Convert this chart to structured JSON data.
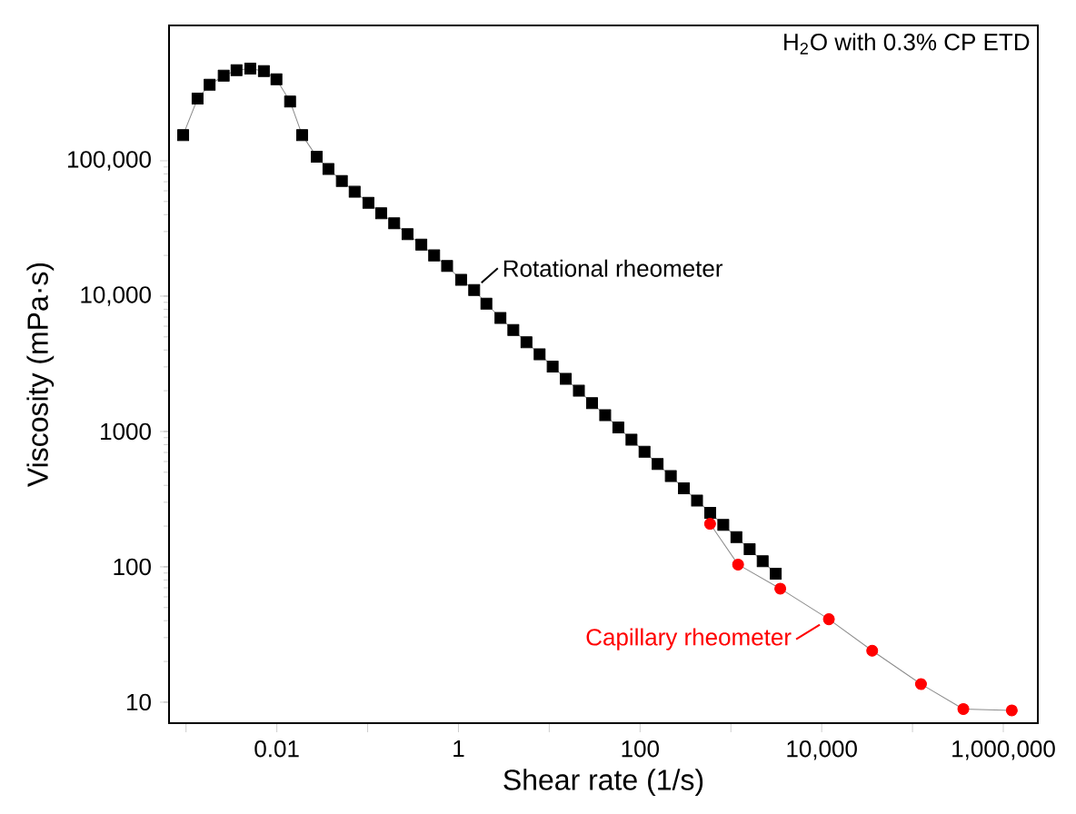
{
  "chart_data": {
    "type": "line",
    "xlabel": "Shear rate (1/s)",
    "ylabel": "Viscosity (mPa·s)",
    "log": "xy",
    "xlim": [
      0.00065,
      2400000
    ],
    "ylim": [
      7,
      1000000
    ],
    "xticks": [
      {
        "value": 0.001,
        "label": null
      },
      {
        "value": 0.01,
        "label": "0.01"
      },
      {
        "value": 0.1,
        "label": null
      },
      {
        "value": 1,
        "label": "1"
      },
      {
        "value": 10,
        "label": null
      },
      {
        "value": 100,
        "label": "100"
      },
      {
        "value": 1000,
        "label": null
      },
      {
        "value": 10000,
        "label": "10,000"
      },
      {
        "value": 100000,
        "label": null
      },
      {
        "value": 1000000,
        "label": "1,000,000"
      }
    ],
    "yticks": [
      10,
      100,
      1000,
      {
        "value": 10000,
        "label": "10,000"
      },
      {
        "value": 100000,
        "label": "100,000"
      }
    ],
    "grid": false,
    "line_style": "solid",
    "annotations": [
      "H$_{2}$O with 0.3% CP ETD"
    ],
    "series": [
      {
        "name": "Rotational rheometer",
        "color": "#000000",
        "marker": "square",
        "x": [
          0.00093,
          0.00134,
          0.00182,
          0.0026,
          0.0036,
          0.0051,
          0.0072,
          0.0099,
          0.014,
          0.019,
          0.0275,
          0.037,
          0.052,
          0.072,
          0.102,
          0.141,
          0.196,
          0.275,
          0.39,
          0.54,
          0.75,
          1.07,
          1.49,
          2.03,
          2.9,
          4.02,
          5.61,
          7.83,
          10.9,
          15.2,
          21.2,
          29.6,
          41.3,
          57.6,
          80.4,
          112,
          156,
          218,
          304,
          424,
          592,
          825,
          1150,
          1610,
          2240,
          3120
        ],
        "values": [
          155000,
          288000,
          365000,
          425000,
          467000,
          480000,
          460000,
          400000,
          274000,
          155000,
          107000,
          87000,
          71000,
          59000,
          49000,
          41000,
          34500,
          28700,
          24000,
          20000,
          16700,
          13200,
          11100,
          8800,
          6900,
          5620,
          4570,
          3720,
          3020,
          2450,
          2000,
          1620,
          1320,
          1070,
          871,
          708,
          575,
          468,
          380,
          309,
          251,
          204,
          166,
          135,
          110,
          89
        ]
      },
      {
        "name": "Capillary rheometer",
        "color": "#ff0000",
        "marker": "circle",
        "x": [
          590,
          1200,
          3500,
          12000,
          36000,
          124000,
          363000,
          1240000
        ],
        "values": [
          208,
          104,
          69,
          41,
          24,
          13.6,
          8.9,
          8.7
        ]
      }
    ]
  }
}
